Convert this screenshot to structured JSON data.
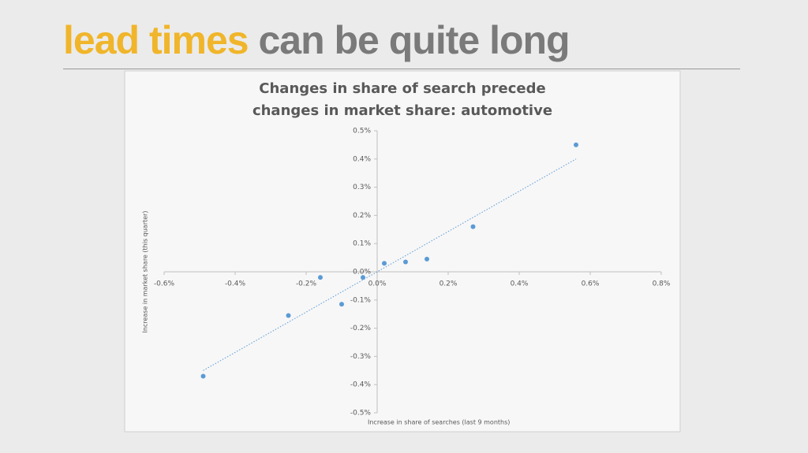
{
  "header": {
    "title_highlight": "lead times",
    "title_rest": "can be quite long"
  },
  "chart_data": {
    "type": "scatter",
    "title": [
      "Changes in share of search precede",
      "changes in market share: automotive"
    ],
    "x_label": "Increase in share of searches (last 9 months)",
    "y_label": "Increase in market share (this quarter)",
    "x": [
      0.56,
      0.27,
      0.14,
      0.08,
      0.02,
      -0.04,
      -0.16,
      -0.1,
      -0.25,
      -0.49
    ],
    "values": [
      0.45,
      0.16,
      0.045,
      0.035,
      0.03,
      -0.02,
      -0.02,
      -0.115,
      -0.155,
      -0.37
    ],
    "color": "#5b9bd5",
    "trendline": {
      "x": [
        -0.49,
        0.56
      ],
      "y": [
        -0.35,
        0.4
      ]
    },
    "xlim": [
      -0.6,
      0.8
    ],
    "ylim": [
      -0.5,
      0.5
    ],
    "xticks": [
      {
        "value": -0.6,
        "label": "-0.6%"
      },
      {
        "value": -0.4,
        "label": "-0.4%"
      },
      {
        "value": -0.2,
        "label": "-0.2%"
      },
      {
        "value": 0,
        "label": "0.0%"
      },
      {
        "value": 0.2,
        "label": "0.2%"
      },
      {
        "value": 0.4,
        "label": "0.4%"
      },
      {
        "value": 0.6,
        "label": "0.6%"
      },
      {
        "value": 0.8,
        "label": "0.8%"
      }
    ],
    "yticks": [
      {
        "value": 0.5,
        "label": "0.5%"
      },
      {
        "value": 0.4,
        "label": "0.4%"
      },
      {
        "value": 0.3,
        "label": "0.3%"
      },
      {
        "value": 0.2,
        "label": "0.2%"
      },
      {
        "value": 0.1,
        "label": "0.1%"
      },
      {
        "value": 0,
        "label": "0.0%"
      },
      {
        "value": -0.1,
        "label": "-0.1%"
      },
      {
        "value": -0.2,
        "label": "-0.2%"
      },
      {
        "value": -0.3,
        "label": "-0.3%"
      },
      {
        "value": -0.4,
        "label": "-0.4%"
      },
      {
        "value": -0.5,
        "label": "-0.5%"
      }
    ],
    "grid": false
  }
}
